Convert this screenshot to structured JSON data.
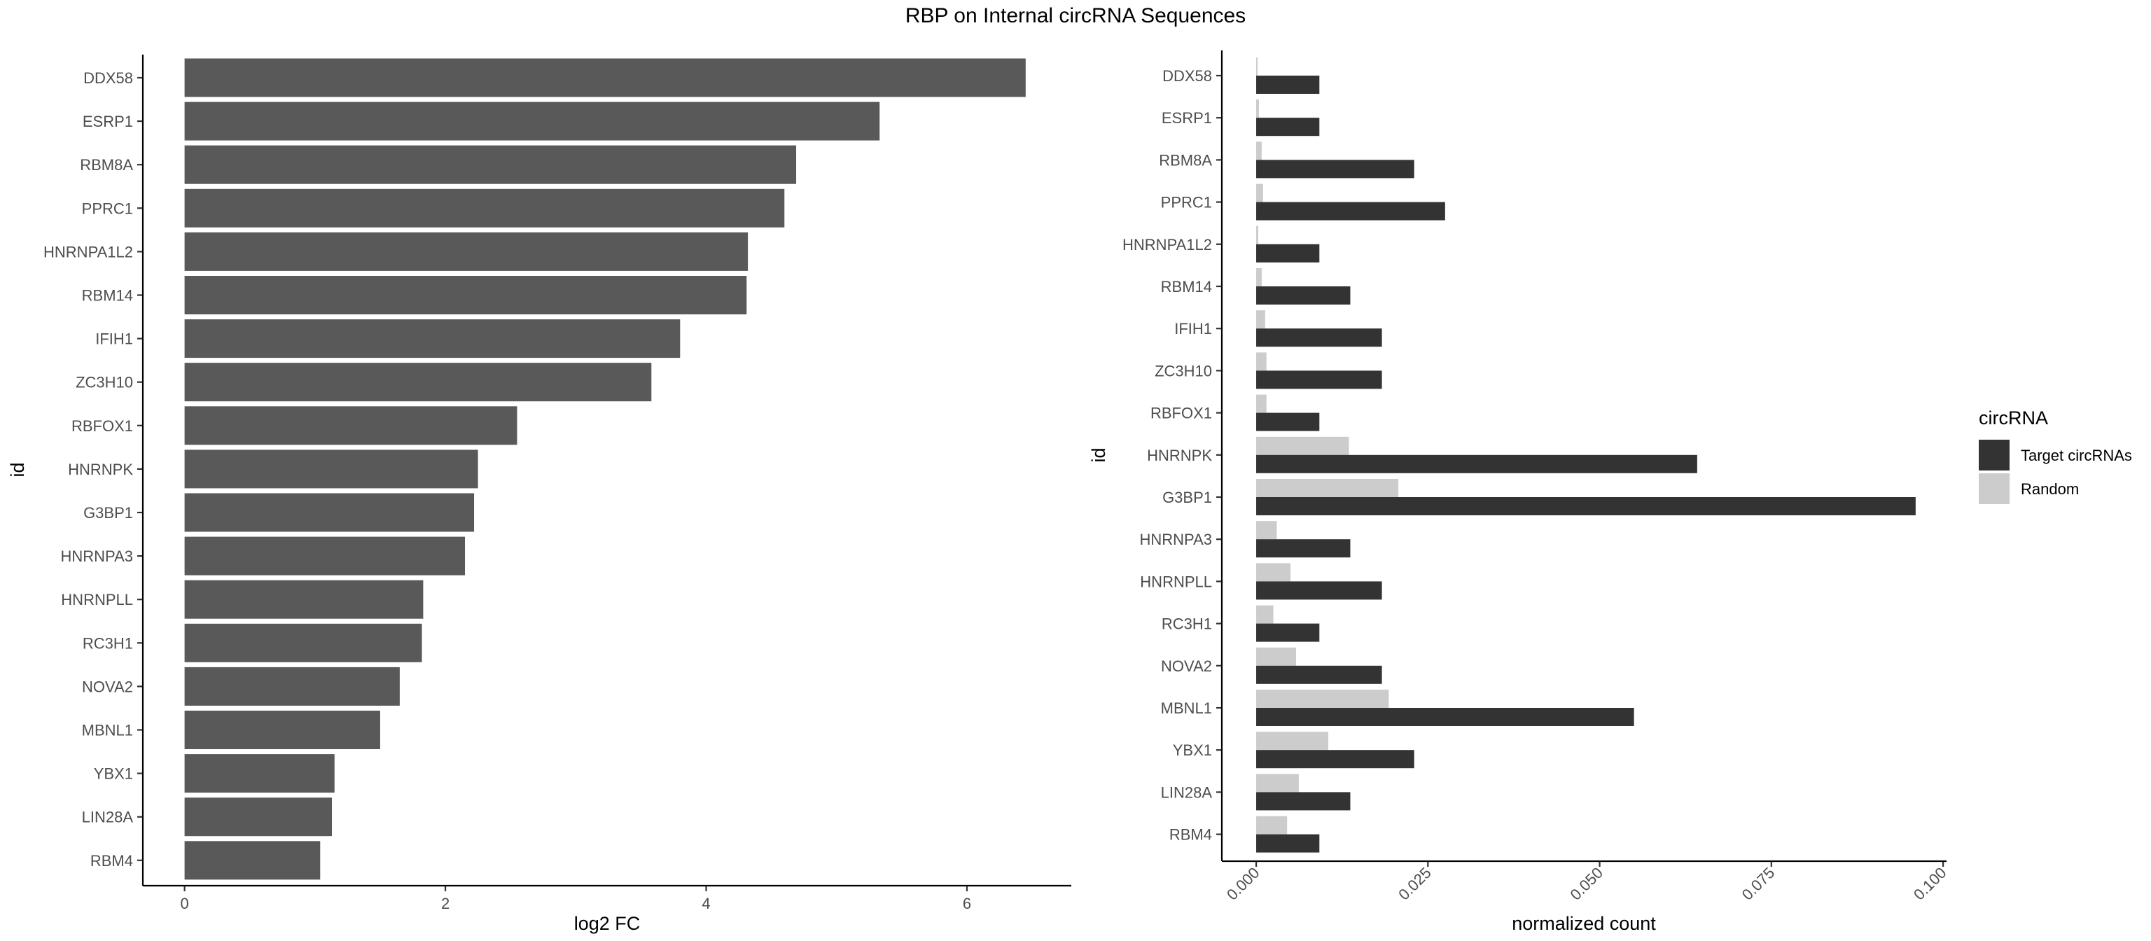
{
  "title": "RBP on Internal circRNA Sequences",
  "colors": {
    "left_bar": "#595959",
    "target": "#333333",
    "random": "#cccccc",
    "axis": "#000000",
    "tick_text": "#4d4d4d"
  },
  "chart_data": [
    {
      "type": "bar",
      "orientation": "horizontal",
      "categories": [
        "DDX58",
        "ESRP1",
        "RBM8A",
        "PPRC1",
        "HNRNPA1L2",
        "RBM14",
        "IFIH1",
        "ZC3H10",
        "RBFOX1",
        "HNRNPK",
        "G3BP1",
        "HNRNPA3",
        "HNRNPLL",
        "RC3H1",
        "NOVA2",
        "MBNL1",
        "YBX1",
        "LIN28A",
        "RBM4"
      ],
      "values": [
        6.45,
        5.33,
        4.69,
        4.6,
        4.32,
        4.31,
        3.8,
        3.58,
        2.55,
        2.25,
        2.22,
        2.15,
        1.83,
        1.82,
        1.65,
        1.5,
        1.15,
        1.13,
        1.04
      ],
      "xlabel": "log2 FC",
      "ylabel": "id",
      "xlim": [
        -0.32,
        6.8
      ],
      "xticks": [
        0,
        2,
        4,
        6
      ],
      "xtick_labels": [
        "0",
        "2",
        "4",
        "6"
      ],
      "grid": false
    },
    {
      "type": "bar",
      "orientation": "horizontal",
      "grouped": true,
      "categories": [
        "DDX58",
        "ESRP1",
        "RBM8A",
        "PPRC1",
        "HNRNPA1L2",
        "RBM14",
        "IFIH1",
        "ZC3H10",
        "RBFOX1",
        "HNRNPK",
        "G3BP1",
        "HNRNPA3",
        "HNRNPLL",
        "RC3H1",
        "NOVA2",
        "MBNL1",
        "YBX1",
        "LIN28A",
        "RBM4"
      ],
      "series": [
        {
          "name": "Target circRNAs",
          "values": [
            0.0092,
            0.0092,
            0.023,
            0.0275,
            0.0092,
            0.0137,
            0.0183,
            0.0183,
            0.0092,
            0.0642,
            0.096,
            0.0137,
            0.0183,
            0.0092,
            0.0183,
            0.055,
            0.023,
            0.0137,
            0.0092
          ]
        },
        {
          "name": "Random",
          "values": [
            0.0002,
            0.0004,
            0.0008,
            0.001,
            0.0003,
            0.0008,
            0.0013,
            0.0015,
            0.0015,
            0.0135,
            0.0207,
            0.003,
            0.005,
            0.0025,
            0.0058,
            0.0193,
            0.0105,
            0.0062,
            0.0045
          ]
        }
      ],
      "xlabel": "normalized count",
      "ylabel": "id",
      "xlim": [
        -0.005,
        0.1005
      ],
      "xticks": [
        0,
        0.025,
        0.05,
        0.075,
        0.1
      ],
      "xtick_labels": [
        "0.000",
        "0.025",
        "0.050",
        "0.075",
        "0.100"
      ],
      "legend": {
        "title": "circRNA",
        "placement": "right",
        "entries": [
          "Target circRNAs",
          "Random"
        ]
      },
      "grid": false
    }
  ]
}
